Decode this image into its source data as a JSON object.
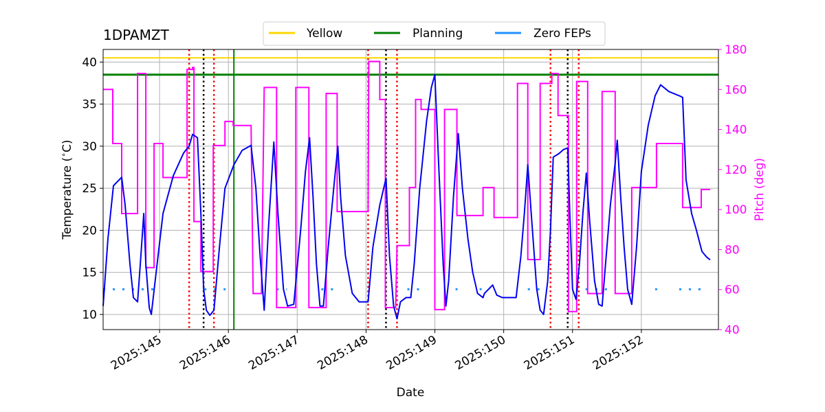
{
  "chart_data": {
    "type": "line",
    "title": "1DPAMZT",
    "xlabel": "Date",
    "ylabel_left": "Temperature ($^\\circ$C)",
    "ylabel_right": "Pitch (deg)",
    "xlim": [
      144.18,
      153.12
    ],
    "ylim_left": [
      8.2,
      41.5
    ],
    "ylim_right": [
      40,
      180
    ],
    "x_ticks": [
      145,
      146,
      147,
      148,
      149,
      150,
      151,
      152
    ],
    "x_tick_labels": [
      "2025:145",
      "2025:146",
      "2025:147",
      "2025:148",
      "2025:149",
      "2025:150",
      "2025:151",
      "2025:152"
    ],
    "y_ticks_left": [
      10,
      15,
      20,
      25,
      30,
      35,
      40
    ],
    "y_ticks_right": [
      40,
      60,
      80,
      100,
      120,
      140,
      160,
      180
    ],
    "grid": true,
    "legend_position": "top-center",
    "legend": [
      {
        "name": "Yellow",
        "color": "#ffd700"
      },
      {
        "name": "Planning",
        "color": "#008000"
      },
      {
        "name": "Zero FEPs",
        "color": "#1e90ff"
      }
    ],
    "limits": {
      "yellow": 40.5,
      "planning": 38.5
    },
    "vlines": {
      "green": [
        146.08
      ],
      "red_dotted": [
        145.43,
        145.79,
        148.03,
        148.45,
        150.68,
        151.09
      ],
      "black_dotted": [
        145.64,
        148.29,
        150.93
      ]
    },
    "series": [
      {
        "name": "1DPAMZT",
        "axis": "left",
        "color": "#0000ee",
        "points": [
          [
            144.18,
            11
          ],
          [
            144.25,
            19
          ],
          [
            144.33,
            25.3
          ],
          [
            144.45,
            26.3
          ],
          [
            144.5,
            23
          ],
          [
            144.57,
            16
          ],
          [
            144.62,
            12
          ],
          [
            144.68,
            11.5
          ],
          [
            144.72,
            16
          ],
          [
            144.77,
            22
          ],
          [
            144.8,
            16
          ],
          [
            144.85,
            10.8
          ],
          [
            144.88,
            10
          ],
          [
            144.95,
            15
          ],
          [
            145.05,
            22
          ],
          [
            145.2,
            26.5
          ],
          [
            145.35,
            29.2
          ],
          [
            145.43,
            30
          ],
          [
            145.48,
            31.4
          ],
          [
            145.55,
            31
          ],
          [
            145.6,
            22
          ],
          [
            145.64,
            13
          ],
          [
            145.68,
            10.5
          ],
          [
            145.73,
            9.9
          ],
          [
            145.79,
            10.5
          ],
          [
            145.87,
            18
          ],
          [
            145.95,
            25
          ],
          [
            146.08,
            27.8
          ],
          [
            146.2,
            29.5
          ],
          [
            146.33,
            30.1
          ],
          [
            146.4,
            25
          ],
          [
            146.46,
            17
          ],
          [
            146.52,
            10.5
          ],
          [
            146.58,
            20
          ],
          [
            146.66,
            30.5
          ],
          [
            146.72,
            22
          ],
          [
            146.8,
            13
          ],
          [
            146.86,
            11
          ],
          [
            146.95,
            11.2
          ],
          [
            147.05,
            20
          ],
          [
            147.12,
            27
          ],
          [
            147.18,
            31
          ],
          [
            147.23,
            24
          ],
          [
            147.28,
            16
          ],
          [
            147.33,
            11
          ],
          [
            147.38,
            11
          ],
          [
            147.45,
            18
          ],
          [
            147.53,
            25
          ],
          [
            147.59,
            30
          ],
          [
            147.63,
            24
          ],
          [
            147.7,
            17
          ],
          [
            147.8,
            12.5
          ],
          [
            147.9,
            11.5
          ],
          [
            148.03,
            11.5
          ],
          [
            148.1,
            18
          ],
          [
            148.2,
            23
          ],
          [
            148.29,
            26.2
          ],
          [
            148.34,
            17
          ],
          [
            148.4,
            11
          ],
          [
            148.45,
            9.5
          ],
          [
            148.5,
            11.5
          ],
          [
            148.58,
            12
          ],
          [
            148.65,
            12
          ],
          [
            148.7,
            16
          ],
          [
            148.78,
            25
          ],
          [
            148.88,
            33
          ],
          [
            148.95,
            37
          ],
          [
            149.0,
            38.5
          ],
          [
            149.06,
            27
          ],
          [
            149.12,
            16
          ],
          [
            149.16,
            11
          ],
          [
            149.2,
            14
          ],
          [
            149.27,
            24
          ],
          [
            149.34,
            31.5
          ],
          [
            149.4,
            25
          ],
          [
            149.48,
            19
          ],
          [
            149.55,
            15
          ],
          [
            149.62,
            12.5
          ],
          [
            149.7,
            12
          ],
          [
            149.72,
            12.5
          ],
          [
            149.78,
            13
          ],
          [
            149.84,
            13.5
          ],
          [
            149.9,
            12.3
          ],
          [
            149.98,
            12
          ],
          [
            150.1,
            12
          ],
          [
            150.18,
            12
          ],
          [
            150.25,
            17
          ],
          [
            150.3,
            22
          ],
          [
            150.35,
            27.8
          ],
          [
            150.4,
            22
          ],
          [
            150.48,
            13
          ],
          [
            150.53,
            10.5
          ],
          [
            150.58,
            10
          ],
          [
            150.64,
            14
          ],
          [
            150.68,
            20
          ],
          [
            150.72,
            28.7
          ],
          [
            150.8,
            29.1
          ],
          [
            150.87,
            29.6
          ],
          [
            150.93,
            29.8
          ],
          [
            150.96,
            22
          ],
          [
            151.0,
            13
          ],
          [
            151.05,
            11.8
          ],
          [
            151.1,
            16
          ],
          [
            151.15,
            22
          ],
          [
            151.2,
            26.8
          ],
          [
            151.25,
            21
          ],
          [
            151.32,
            14
          ],
          [
            151.38,
            11.2
          ],
          [
            151.43,
            11
          ],
          [
            151.48,
            16
          ],
          [
            151.55,
            23
          ],
          [
            151.62,
            28
          ],
          [
            151.65,
            30.7
          ],
          [
            151.7,
            24
          ],
          [
            151.75,
            18
          ],
          [
            151.8,
            13
          ],
          [
            151.86,
            11.2
          ],
          [
            151.93,
            18
          ],
          [
            152.0,
            27
          ],
          [
            152.1,
            32.5
          ],
          [
            152.2,
            36
          ],
          [
            152.28,
            37.3
          ],
          [
            152.4,
            36.5
          ],
          [
            152.55,
            36
          ],
          [
            152.6,
            35.8
          ],
          [
            152.65,
            26
          ],
          [
            152.73,
            22
          ],
          [
            152.8,
            20
          ],
          [
            152.88,
            17.5
          ],
          [
            152.95,
            16.8
          ],
          [
            153.0,
            16.5
          ]
        ]
      },
      {
        "name": "Pitch",
        "axis": "right",
        "color": "#ff00ff",
        "points": [
          [
            144.18,
            160
          ],
          [
            144.32,
            160
          ],
          [
            144.32,
            133
          ],
          [
            144.45,
            133
          ],
          [
            144.45,
            98
          ],
          [
            144.68,
            98
          ],
          [
            144.68,
            168
          ],
          [
            144.8,
            168
          ],
          [
            144.8,
            71
          ],
          [
            144.92,
            71
          ],
          [
            144.92,
            133
          ],
          [
            145.05,
            133
          ],
          [
            145.05,
            116
          ],
          [
            145.4,
            116
          ],
          [
            145.4,
            170
          ],
          [
            145.48,
            170
          ],
          [
            145.48,
            171
          ],
          [
            145.5,
            171
          ],
          [
            145.5,
            94
          ],
          [
            145.6,
            94
          ],
          [
            145.6,
            69
          ],
          [
            145.78,
            69
          ],
          [
            145.78,
            132
          ],
          [
            145.95,
            132
          ],
          [
            145.95,
            144
          ],
          [
            146.07,
            144
          ],
          [
            146.07,
            142
          ],
          [
            146.33,
            142
          ],
          [
            146.36,
            58
          ],
          [
            146.48,
            58
          ],
          [
            146.52,
            161
          ],
          [
            146.7,
            161
          ],
          [
            146.7,
            51
          ],
          [
            146.98,
            51
          ],
          [
            146.98,
            161
          ],
          [
            147.17,
            161
          ],
          [
            147.17,
            51
          ],
          [
            147.42,
            51
          ],
          [
            147.42,
            158
          ],
          [
            147.58,
            158
          ],
          [
            147.58,
            99
          ],
          [
            148.03,
            99
          ],
          [
            148.04,
            174
          ],
          [
            148.2,
            174
          ],
          [
            148.2,
            155
          ],
          [
            148.28,
            155
          ],
          [
            148.28,
            51
          ],
          [
            148.43,
            51
          ],
          [
            148.45,
            82
          ],
          [
            148.63,
            82
          ],
          [
            148.63,
            111
          ],
          [
            148.72,
            111
          ],
          [
            148.72,
            155
          ],
          [
            148.8,
            155
          ],
          [
            148.8,
            150
          ],
          [
            149.0,
            150
          ],
          [
            149.0,
            50
          ],
          [
            149.14,
            50
          ],
          [
            149.14,
            150
          ],
          [
            149.32,
            150
          ],
          [
            149.32,
            97
          ],
          [
            149.7,
            97
          ],
          [
            149.7,
            111
          ],
          [
            149.86,
            111
          ],
          [
            149.86,
            96
          ],
          [
            150.2,
            96
          ],
          [
            150.2,
            163
          ],
          [
            150.35,
            163
          ],
          [
            150.35,
            75
          ],
          [
            150.53,
            75
          ],
          [
            150.53,
            163
          ],
          [
            150.7,
            163
          ],
          [
            150.7,
            168
          ],
          [
            150.79,
            168
          ],
          [
            150.79,
            147
          ],
          [
            150.94,
            147
          ],
          [
            150.94,
            49
          ],
          [
            151.06,
            49
          ],
          [
            151.06,
            164
          ],
          [
            151.22,
            164
          ],
          [
            151.22,
            58
          ],
          [
            151.43,
            58
          ],
          [
            151.43,
            159
          ],
          [
            151.62,
            159
          ],
          [
            151.62,
            58
          ],
          [
            151.86,
            58
          ],
          [
            151.86,
            111
          ],
          [
            152.22,
            111
          ],
          [
            152.22,
            133
          ],
          [
            152.6,
            133
          ],
          [
            152.6,
            101
          ],
          [
            152.87,
            101
          ],
          [
            152.87,
            110
          ],
          [
            153.0,
            110
          ]
        ]
      },
      {
        "name": "Zero FEPs",
        "axis": "left",
        "color": "#1e90ff",
        "style": "dotted",
        "y": 13,
        "x_segments": [
          [
            144.18,
            144.98
          ],
          [
            145.65,
            146.08
          ],
          [
            146.7,
            146.85
          ],
          [
            147.35,
            147.6
          ],
          [
            148.6,
            148.8
          ],
          [
            149.3,
            149.35
          ],
          [
            149.65,
            149.72
          ],
          [
            150.35,
            150.55
          ],
          [
            151.05,
            151.5
          ],
          [
            152.2,
            152.25
          ],
          [
            152.55,
            152.95
          ]
        ]
      }
    ]
  }
}
